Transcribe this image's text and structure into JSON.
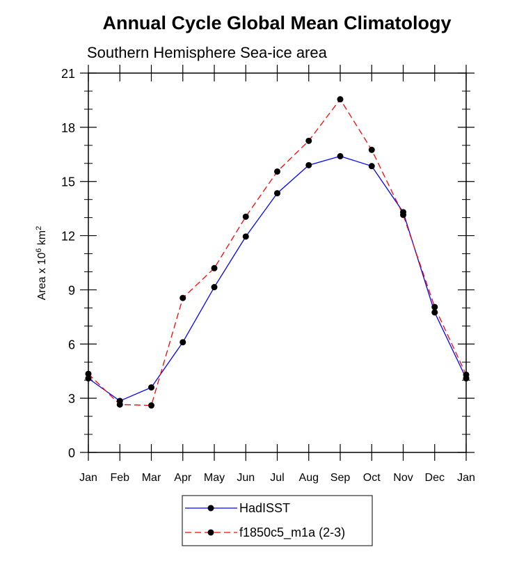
{
  "chart_data": {
    "type": "line",
    "title": "Annual Cycle Global Mean Climatology",
    "subtitle": "Southern Hemisphere Sea-ice area",
    "ylabel": "Area x 10",
    "ylabel_exp": "6",
    "ylabel_unit": " km",
    "ylabel_unit_exp": "2",
    "xlabel": "",
    "categories": [
      "Jan",
      "Feb",
      "Mar",
      "Apr",
      "May",
      "Jun",
      "Jul",
      "Aug",
      "Sep",
      "Oct",
      "Nov",
      "Dec",
      "Jan"
    ],
    "ylim": [
      0,
      21
    ],
    "yticks": [
      0,
      3,
      6,
      9,
      12,
      15,
      18,
      21
    ],
    "series": [
      {
        "name": "HadISST",
        "color": "#0000ff",
        "dash": "solid",
        "values": [
          4.1,
          2.85,
          3.6,
          6.1,
          9.15,
          11.95,
          14.35,
          15.9,
          16.4,
          15.85,
          13.3,
          7.75,
          4.1
        ]
      },
      {
        "name": "f1850c5_m1a (2-3)",
        "color": "#ff0000",
        "dash": "dashed",
        "values": [
          4.35,
          2.65,
          2.6,
          8.55,
          10.2,
          13.05,
          15.55,
          17.25,
          19.55,
          16.75,
          13.15,
          8.05,
          4.3
        ]
      }
    ],
    "legend_position": "bottom-center"
  }
}
